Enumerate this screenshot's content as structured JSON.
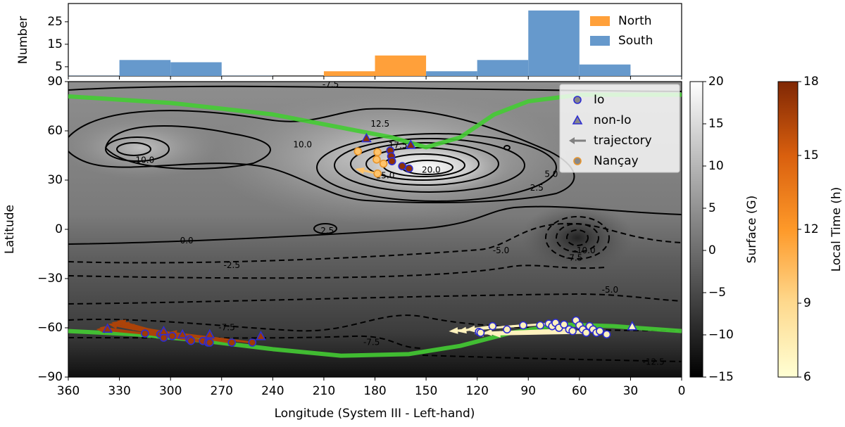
{
  "chart_data": [
    {
      "type": "histogram",
      "ylabel": "Number",
      "bins": [
        360,
        330,
        300,
        270,
        240,
        210,
        180,
        150,
        120,
        90,
        60,
        30,
        0
      ],
      "series": [
        {
          "name": "North",
          "color": "#ffa03a",
          "values": [
            0,
            0,
            0,
            0,
            0,
            3,
            10,
            0,
            0,
            0,
            0,
            0
          ]
        },
        {
          "name": "South",
          "color": "#6699cc",
          "values": [
            1,
            8,
            7,
            1,
            0,
            0,
            0,
            3,
            8,
            30,
            6,
            1
          ]
        }
      ],
      "xlim": [
        360,
        0
      ],
      "ylim": [
        0.9,
        33.1
      ],
      "yticks": [
        5,
        15,
        25
      ],
      "legend": "upper right"
    },
    {
      "type": "scatter",
      "xlabel": "Longitude (System III - Left-hand)",
      "ylabel": "Latitude",
      "xlim": [
        360,
        0
      ],
      "ylim": [
        -90,
        90
      ],
      "xticks": [
        360,
        330,
        300,
        270,
        240,
        210,
        180,
        150,
        120,
        90,
        60,
        30,
        0
      ],
      "yticks": [
        90,
        60,
        30,
        0,
        {
          "value": -30,
          "label": "−30"
        },
        {
          "value": -60,
          "label": "−60"
        },
        {
          "value": -90,
          "label": "−90"
        }
      ],
      "legend": "upper right",
      "colorbar_surface": {
        "label": "Surface (G)",
        "lim": [
          -15,
          20
        ],
        "ticks": [
          20,
          15,
          10,
          5,
          0,
          {
            "value": -5,
            "label": "−5"
          },
          {
            "value": -10,
            "label": "−10"
          },
          {
            "value": -15,
            "label": "−15"
          }
        ]
      },
      "colorbar_time": {
        "label": "Local Time (h)",
        "lim": [
          6,
          18
        ],
        "ticks": [
          6,
          9,
          12,
          15,
          18
        ]
      },
      "footprints": {
        "color": "#44cc33",
        "north": {
          "lon": [
            360,
            300,
            240,
            200,
            170,
            150,
            130,
            110,
            90,
            60,
            30,
            0
          ],
          "lat": [
            81,
            77,
            70,
            62,
            56,
            50,
            56,
            70,
            78,
            82,
            82,
            82
          ]
        },
        "south": {
          "lon": [
            360,
            320,
            280,
            240,
            200,
            160,
            130,
            100,
            70,
            40,
            0
          ],
          "lat": [
            -62,
            -64,
            -68,
            -73,
            -77,
            -76,
            -71,
            -63,
            -58,
            -59,
            -62
          ]
        }
      },
      "series": [
        {
          "name": "Io",
          "marker": "circle",
          "edgecolor": "#2d2dd2",
          "lon": [
            315,
            306,
            304,
            299,
            289,
            288,
            281,
            278,
            277,
            264,
            252,
            119,
            118,
            111,
            102.5,
            93,
            83,
            78,
            76,
            74,
            72,
            69,
            66,
            64,
            62,
            60,
            58,
            56,
            54,
            52,
            50,
            48,
            44,
            171,
            170.5,
            170,
            164,
            160
          ],
          "lat": [
            -63.5,
            -64,
            -66,
            -65,
            -67,
            -68,
            -68,
            -69,
            -69,
            -69,
            -69,
            -62.5,
            -63,
            -59,
            -61,
            -58.5,
            -58.5,
            -57.5,
            -59,
            -57,
            -60,
            -58,
            -61,
            -62,
            -55.5,
            -58.5,
            -61,
            -63,
            -59,
            -61,
            -63,
            -62,
            -64,
            48,
            44.5,
            41.5,
            38.5,
            37
          ],
          "local_time": [
            17,
            17,
            17,
            17,
            17,
            17,
            17,
            17,
            17,
            17,
            17,
            7,
            7,
            7,
            7,
            7,
            7,
            7,
            7,
            7,
            7,
            7,
            7,
            7,
            7,
            7,
            7,
            7,
            7,
            7,
            7,
            7,
            7,
            17.5,
            17.5,
            17.5,
            17.5,
            17.5
          ]
        },
        {
          "name": "non-Io",
          "marker": "triangle",
          "edgecolor": "#2d2dd2",
          "lon": [
            337,
            304,
            293,
            277,
            247,
            29,
            185,
            159
          ],
          "lat": [
            -60.5,
            -62,
            -64,
            -64,
            -65,
            -59,
            55.5,
            51.5
          ],
          "local_time": [
            17,
            17,
            17,
            17,
            17,
            6.5,
            17.5,
            17.5
          ]
        },
        {
          "name": "Nançay",
          "marker": "circle",
          "edgecolor": "#e8952c",
          "lon": [
            178.5,
            178.5,
            190,
            179,
            175
          ],
          "lat": [
            47,
            34,
            47.5,
            42.5,
            40
          ],
          "local_time": [
            10,
            10,
            10,
            10,
            10
          ]
        }
      ],
      "trajectories": {
        "name": "trajectory",
        "color": "#808080",
        "items": [
          {
            "lon": [
              315,
              342
            ],
            "lat": [
              -63.5,
              -61
            ],
            "local_time": 16.5
          },
          {
            "lon": [
              306,
              335
            ],
            "lat": [
              -64,
              -58
            ],
            "local_time": 16.5
          },
          {
            "lon": [
              299,
              330
            ],
            "lat": [
              -65,
              -56
            ],
            "local_time": 16.5
          },
          {
            "lon": [
              289,
              333
            ],
            "lat": [
              -67,
              -57
            ],
            "local_time": 16.5
          },
          {
            "lon": [
              281,
              328
            ],
            "lat": [
              -68,
              -57.5
            ],
            "local_time": 16.5
          },
          {
            "lon": [
              277,
              340
            ],
            "lat": [
              -69,
              -60
            ],
            "local_time": 16.5
          },
          {
            "lon": [
              264,
              325
            ],
            "lat": [
              -69,
              -59
            ],
            "local_time": 16.5
          },
          {
            "lon": [
              252,
              300
            ],
            "lat": [
              -69,
              -63
            ],
            "local_time": 16.5
          },
          {
            "lon": [
              111,
              130
            ],
            "lat": [
              -59,
              -62
            ],
            "local_time": 7
          },
          {
            "lon": [
              93,
              135
            ],
            "lat": [
              -58.5,
              -62
            ],
            "local_time": 7
          },
          {
            "lon": [
              78,
              125
            ],
            "lat": [
              -57.5,
              -61
            ],
            "local_time": 7
          },
          {
            "lon": [
              66,
              115
            ],
            "lat": [
              -61,
              -63
            ],
            "local_time": 7
          },
          {
            "lon": [
              56,
              110
            ],
            "lat": [
              -63,
              -64
            ],
            "local_time": 7
          },
          {
            "lon": [
              48,
              120
            ],
            "lat": [
              -62,
              -63.5
            ],
            "local_time": 7
          },
          {
            "lon": [
              178.5,
              190
            ],
            "lat": [
              34,
              36.5
            ],
            "local_time": 10
          }
        ]
      },
      "contour_labels": [
        {
          "text": "-7.5",
          "lon": 206,
          "lat": 88
        },
        {
          "text": "12.5",
          "lon": 177,
          "lat": 64
        },
        {
          "text": "10.0",
          "lon": 222.5,
          "lat": 51.5
        },
        {
          "text": "17.5",
          "lon": 166.5,
          "lat": 51
        },
        {
          "text": "20.0",
          "lon": 147,
          "lat": 36
        },
        {
          "text": "15.0",
          "lon": 174,
          "lat": 32.5
        },
        {
          "text": "10.0",
          "lon": 315,
          "lat": 42
        },
        {
          "text": "5.0",
          "lon": 76.5,
          "lat": 33.5
        },
        {
          "text": "2.5",
          "lon": 85,
          "lat": 25
        },
        {
          "text": "2.5",
          "lon": 208,
          "lat": -1
        },
        {
          "text": "0.0",
          "lon": 290.5,
          "lat": -7
        },
        {
          "text": "-2.5",
          "lon": 264,
          "lat": -22
        },
        {
          "text": "-5.0",
          "lon": 106,
          "lat": -13
        },
        {
          "text": "-10.0",
          "lon": 57,
          "lat": -13
        },
        {
          "text": "-7.5",
          "lon": 63,
          "lat": -17.5
        },
        {
          "text": "-5.0",
          "lon": 42,
          "lat": -37
        },
        {
          "text": "-7.5",
          "lon": 267,
          "lat": -60
        },
        {
          "text": "-7.5",
          "lon": 182,
          "lat": -69
        },
        {
          "text": "-12.5",
          "lon": 16.5,
          "lat": -81
        }
      ]
    }
  ]
}
